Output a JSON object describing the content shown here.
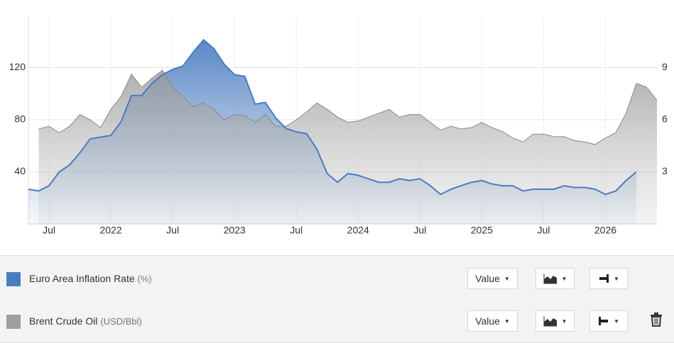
{
  "chart_data": {
    "type": "area",
    "x": [
      "2021-05",
      "2021-06",
      "2021-07",
      "2021-08",
      "2021-09",
      "2021-10",
      "2021-11",
      "2021-12",
      "2022-01",
      "2022-02",
      "2022-03",
      "2022-04",
      "2022-05",
      "2022-06",
      "2022-07",
      "2022-08",
      "2022-09",
      "2022-10",
      "2022-11",
      "2022-12",
      "2023-01",
      "2023-02",
      "2023-03",
      "2023-04",
      "2023-05",
      "2023-06",
      "2023-07",
      "2023-08",
      "2023-09",
      "2023-10",
      "2023-11",
      "2023-12",
      "2024-01",
      "2024-02",
      "2024-03",
      "2024-04",
      "2024-05",
      "2024-06",
      "2024-07",
      "2024-08",
      "2024-09",
      "2024-10",
      "2024-11",
      "2024-12",
      "2025-01",
      "2025-02",
      "2025-03",
      "2025-04",
      "2025-05",
      "2025-06",
      "2025-07",
      "2025-08",
      "2025-09",
      "2025-10",
      "2025-11",
      "2025-12",
      "2026-01",
      "2026-02",
      "2026-03",
      "2026-04",
      "2026-05",
      "2026-06"
    ],
    "series": [
      {
        "name": "Euro Area Inflation Rate",
        "unit": "(%)",
        "color": "#4a7cc0",
        "axis": "y2",
        "values": [
          2.0,
          1.9,
          2.2,
          3.0,
          3.4,
          4.1,
          4.9,
          5.0,
          5.1,
          5.9,
          7.4,
          7.4,
          8.1,
          8.6,
          8.9,
          9.1,
          9.9,
          10.6,
          10.1,
          9.2,
          8.6,
          8.5,
          6.9,
          7.0,
          6.1,
          5.5,
          5.3,
          5.2,
          4.3,
          2.9,
          2.4,
          2.9,
          2.8,
          2.6,
          2.4,
          2.4,
          2.6,
          2.5,
          2.6,
          2.2,
          1.7,
          2.0,
          2.2,
          2.4,
          2.5,
          2.3,
          2.2,
          2.2,
          1.9,
          2.0,
          2.0,
          2.0,
          2.2,
          2.1,
          2.1,
          2.0,
          1.7,
          1.9,
          2.5,
          3.0,
          null,
          null
        ]
      },
      {
        "name": "Brent Crude Oil",
        "unit": "(USD/Bbl)",
        "color": "#9e9e9e",
        "values": [
          null,
          73,
          75,
          70,
          75,
          84,
          80,
          74,
          88,
          98,
          115,
          105,
          112,
          118,
          105,
          98,
          90,
          93,
          88,
          80,
          84,
          83,
          78,
          84,
          75,
          75,
          80,
          86,
          93,
          88,
          82,
          78,
          79,
          82,
          85,
          88,
          82,
          84,
          84,
          78,
          72,
          75,
          73,
          74,
          78,
          74,
          71,
          66,
          63,
          69,
          69,
          67,
          67,
          64,
          63,
          61,
          66,
          70,
          85,
          108,
          105,
          95
        ]
      }
    ],
    "xlim": [
      "2021-05",
      "2026-06"
    ],
    "xticks": [
      {
        "value": "2021-07",
        "label": "Jul"
      },
      {
        "value": "2022-01",
        "label": "2022"
      },
      {
        "value": "2022-07",
        "label": "Jul"
      },
      {
        "value": "2023-01",
        "label": "2023"
      },
      {
        "value": "2023-07",
        "label": "Jul"
      },
      {
        "value": "2024-01",
        "label": "2024"
      },
      {
        "value": "2024-07",
        "label": "Jul"
      },
      {
        "value": "2025-01",
        "label": "2025"
      },
      {
        "value": "2025-07",
        "label": "Jul"
      },
      {
        "value": "2026-01",
        "label": "2026"
      }
    ],
    "ylim": [
      0,
      160
    ],
    "yticks": [
      40,
      80,
      120
    ],
    "y2lim": [
      0,
      12
    ],
    "y2ticks": [
      3,
      6,
      9
    ],
    "grid": true
  },
  "controls": [
    {
      "dropdown": "Value"
    },
    {
      "dropdown": "Value"
    }
  ]
}
